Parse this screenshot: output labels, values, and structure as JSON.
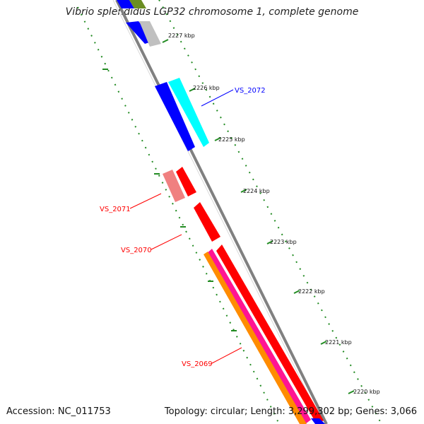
{
  "title": "Vibrio splendidus LGP32 chromosome 1, complete genome",
  "footer": {
    "accession": "Accession: NC_011753",
    "summary": "Topology: circular; Length: 3,299,302 bp; Genes: 3,066"
  },
  "ticks": [
    "2227 kbp",
    "2226 kbp",
    "2225 kbp",
    "2224 kbp",
    "2223 kbp",
    "2222 kbp",
    "2221 kbp",
    "2220 kbp"
  ],
  "gene_labels": [
    {
      "name": "VS_2072",
      "color": "#0000ff"
    },
    {
      "name": "VS_2071",
      "color": "#ff0000"
    },
    {
      "name": "VS_2070",
      "color": "#ff0000"
    },
    {
      "name": "VS_2069",
      "color": "#ff0000"
    }
  ],
  "colors": {
    "backbone": "#808080",
    "ticks": "#228B22",
    "blue_feature": "#0000ff",
    "cyan_feature": "#00ffff",
    "red_feature": "#ff0000",
    "pink_feature": "#f08080",
    "magenta_feature": "#ff1493",
    "orange_feature": "#ff8c00",
    "grey_feature": "#c0c0c0",
    "olive_feature": "#6b8e23"
  }
}
